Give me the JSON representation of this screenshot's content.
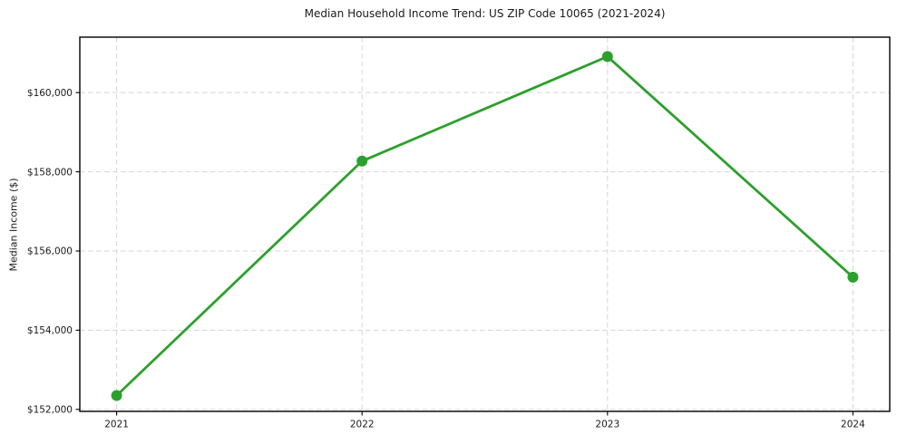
{
  "chart_data": {
    "type": "line",
    "title": "Median Household Income Trend: US ZIP Code 10065 (2021-2024)",
    "ylabel": "Median Income ($)",
    "categories": [
      2021,
      2022,
      2023,
      2024
    ],
    "series": [
      {
        "name": "Median Household Income",
        "values": [
          152350,
          158270,
          160910,
          155340
        ]
      }
    ],
    "xtick_labels": [
      "2021",
      "2022",
      "2023",
      "2024"
    ],
    "yticks": [
      152000,
      154000,
      156000,
      158000,
      160000
    ],
    "ytick_labels": [
      "$152,000",
      "$154,000",
      "$156,000",
      "$158,000",
      "$160,000"
    ],
    "xlim": [
      2020.85,
      2024.15
    ],
    "ylim": [
      151950,
      161400
    ],
    "grid": true,
    "grid_linestyle": "dashed",
    "legend_position": "none",
    "colors": {
      "line": "#2ca02c",
      "marker": "#2ca02c",
      "grid": "#d5d5d5",
      "spine": "#000000",
      "text": "#1a1a1a",
      "background": "#ffffff"
    }
  }
}
